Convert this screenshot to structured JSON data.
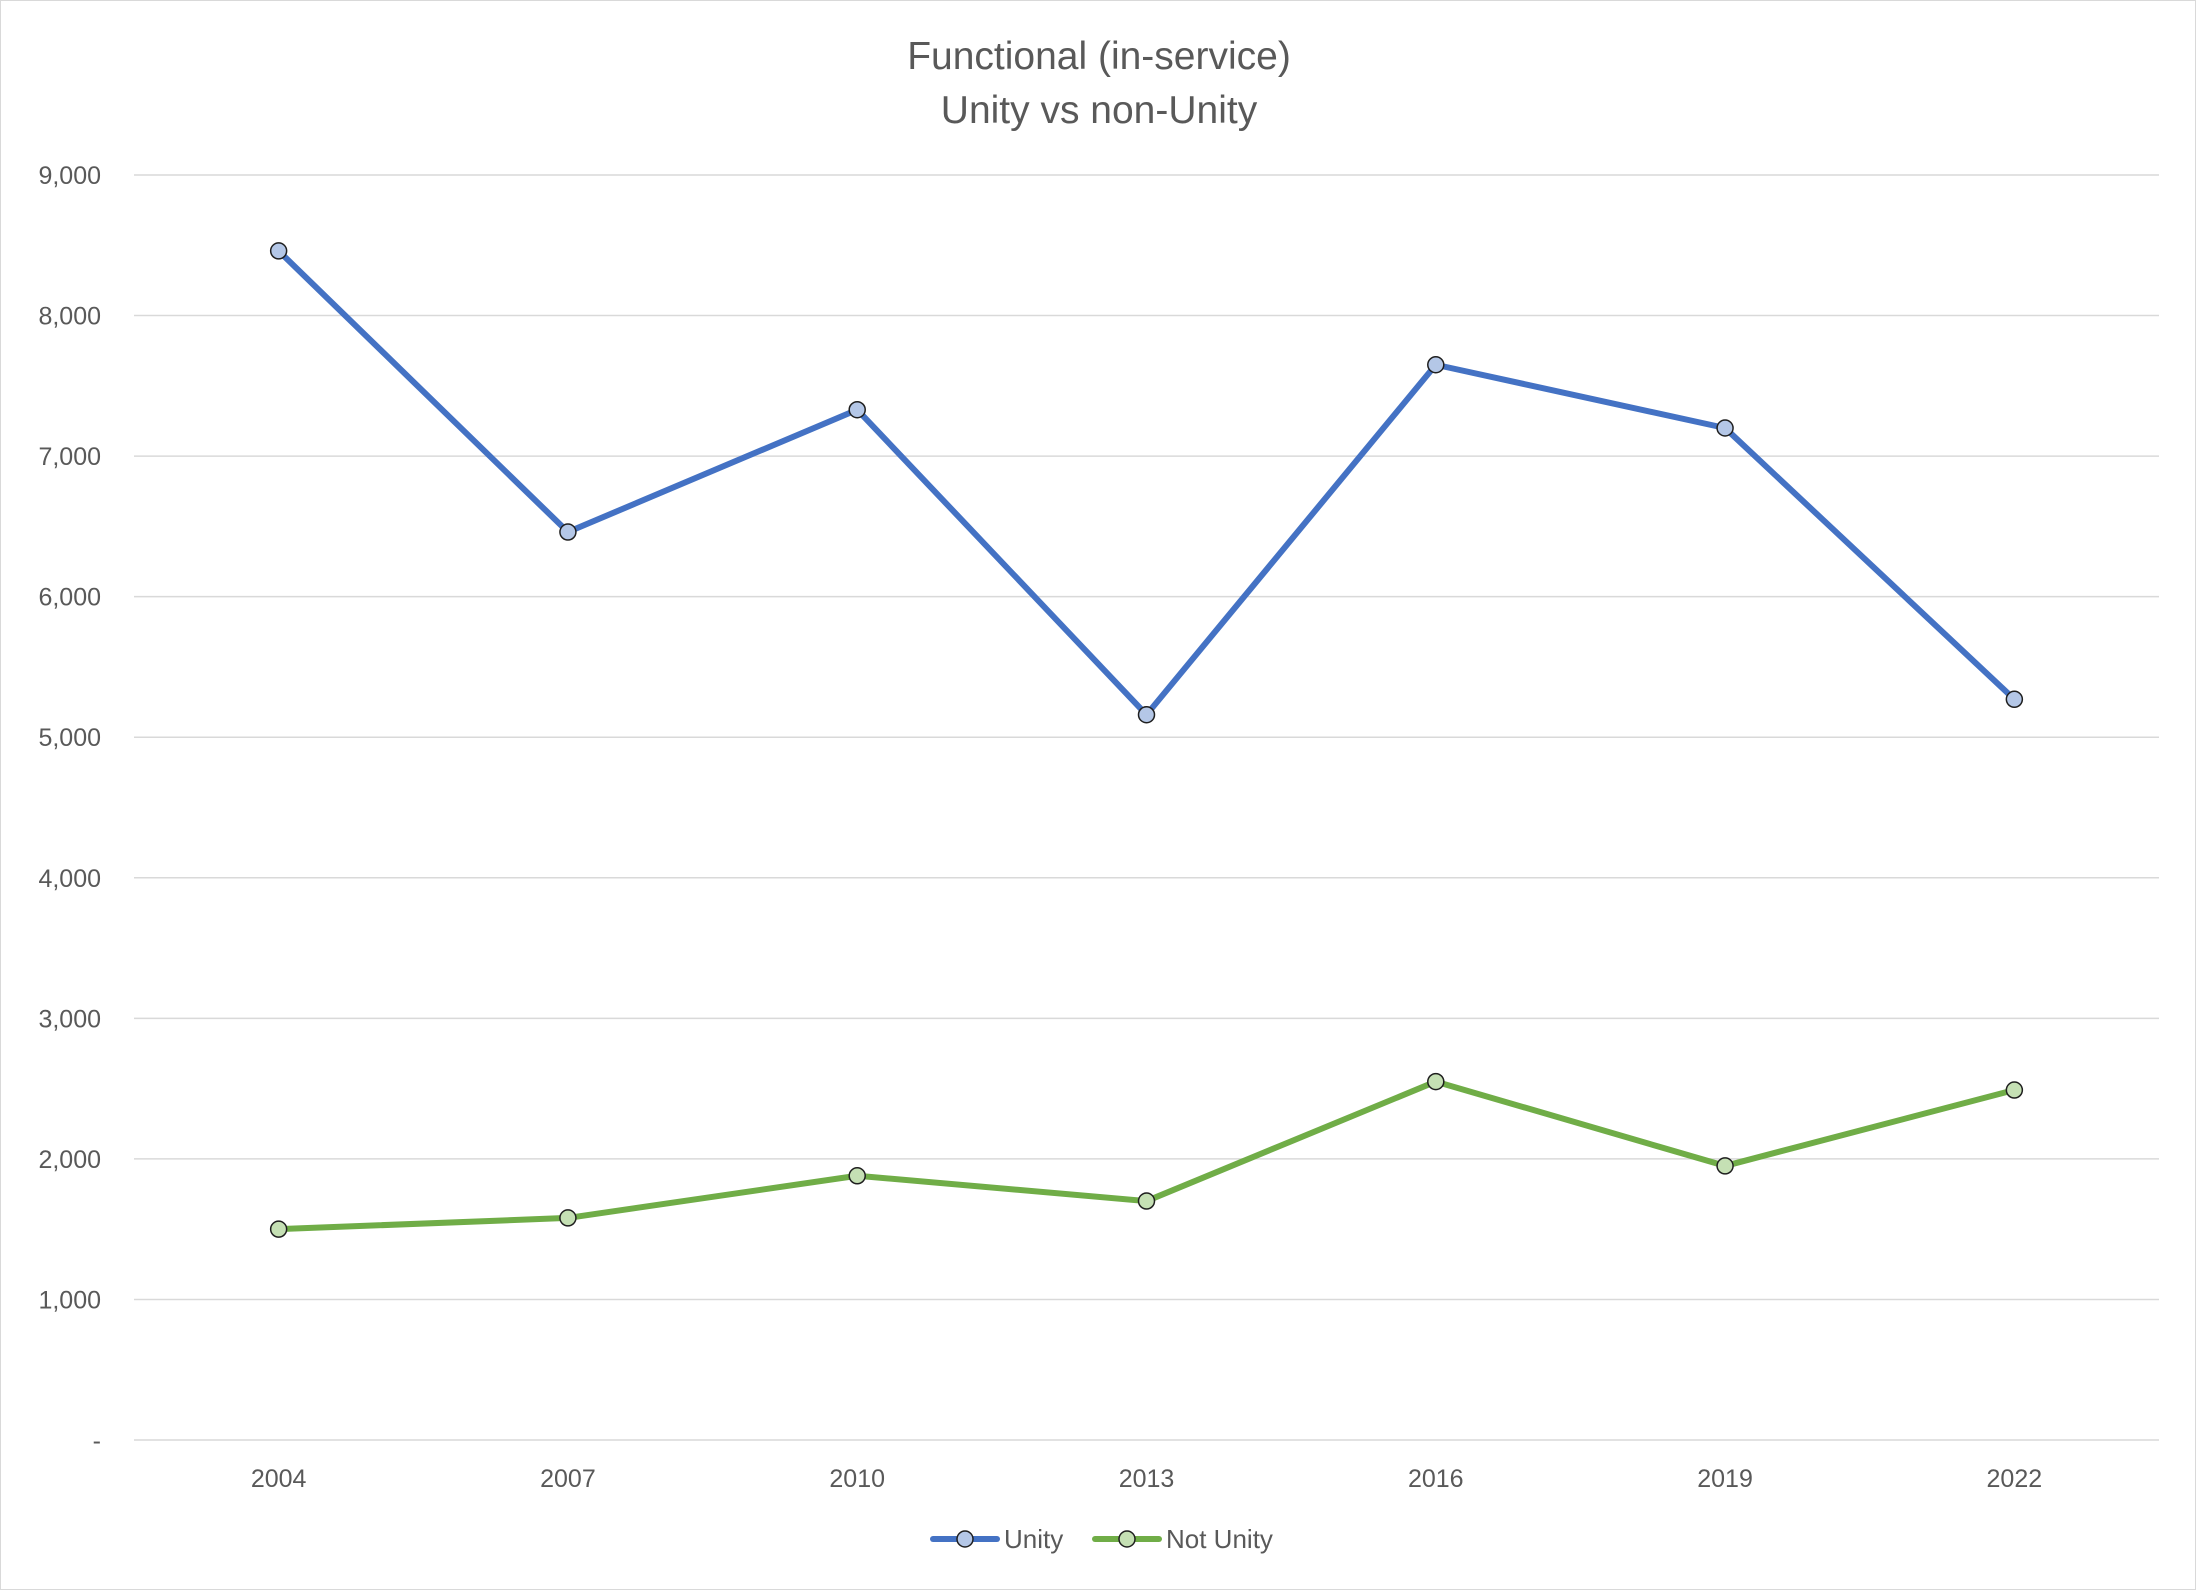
{
  "chart_data": {
    "type": "line",
    "title": "Functional (in-service)",
    "subtitle": "Unity vs non-Unity",
    "xlabel": "",
    "ylabel": "",
    "categories": [
      "2004",
      "2007",
      "2010",
      "2013",
      "2016",
      "2019",
      "2022"
    ],
    "ylim": [
      0,
      9000
    ],
    "y_ticks": [
      {
        "value": 0,
        "label": "-"
      },
      {
        "value": 1000,
        "label": "1,000"
      },
      {
        "value": 2000,
        "label": "2,000"
      },
      {
        "value": 3000,
        "label": "3,000"
      },
      {
        "value": 4000,
        "label": "4,000"
      },
      {
        "value": 5000,
        "label": "5,000"
      },
      {
        "value": 6000,
        "label": "6,000"
      },
      {
        "value": 7000,
        "label": "7,000"
      },
      {
        "value": 8000,
        "label": "8,000"
      },
      {
        "value": 9000,
        "label": "9,000"
      }
    ],
    "grid": true,
    "legend_position": "bottom",
    "series": [
      {
        "name": "Unity",
        "color": "#4472C4",
        "marker_fill": "#B4C7E7",
        "values": [
          8460,
          6460,
          7330,
          5160,
          7650,
          7200,
          5270
        ]
      },
      {
        "name": "Not Unity",
        "color": "#70AD47",
        "marker_fill": "#C5E0B4",
        "values": [
          1500,
          1580,
          1880,
          1700,
          2550,
          1950,
          2490
        ]
      }
    ]
  }
}
